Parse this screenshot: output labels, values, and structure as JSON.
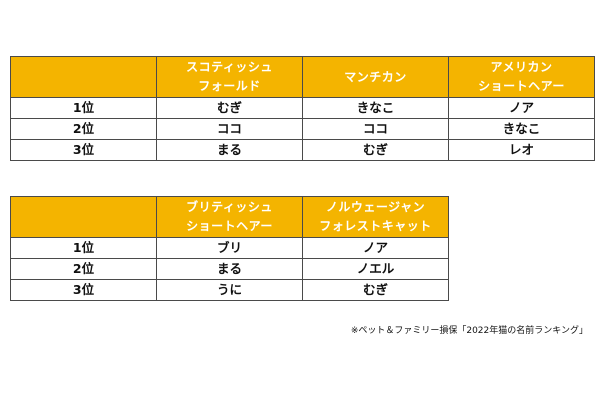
{
  "table1": {
    "headers": [
      {
        "line1": "",
        "line2": ""
      },
      {
        "line1": "スコティッシュ",
        "line2": "フォールド"
      },
      {
        "line1": "マンチカン",
        "line2": ""
      },
      {
        "line1": "アメリカン",
        "line2": "ショートヘアー"
      }
    ],
    "rows": [
      {
        "rank": "1位",
        "cells": [
          "むぎ",
          "きなこ",
          "ノア"
        ]
      },
      {
        "rank": "2位",
        "cells": [
          "ココ",
          "ココ",
          "きなこ"
        ]
      },
      {
        "rank": "3位",
        "cells": [
          "まる",
          "むぎ",
          "レオ"
        ]
      }
    ]
  },
  "table2": {
    "headers": [
      {
        "line1": "",
        "line2": ""
      },
      {
        "line1": "ブリティッシュ",
        "line2": "ショートヘアー"
      },
      {
        "line1": "ノルウェージャン",
        "line2": "フォレストキャット"
      }
    ],
    "rows": [
      {
        "rank": "1位",
        "cells": [
          "ブリ",
          "ノア"
        ]
      },
      {
        "rank": "2位",
        "cells": [
          "まる",
          "ノエル"
        ]
      },
      {
        "rank": "3位",
        "cells": [
          "うに",
          "むぎ"
        ]
      }
    ]
  },
  "source_note": "※ペット＆ファミリー損保「2022年猫の名前ランキング」",
  "colors": {
    "header_bg": "#f4b400",
    "header_text": "#ffffff",
    "border": "#4a4a4a"
  }
}
